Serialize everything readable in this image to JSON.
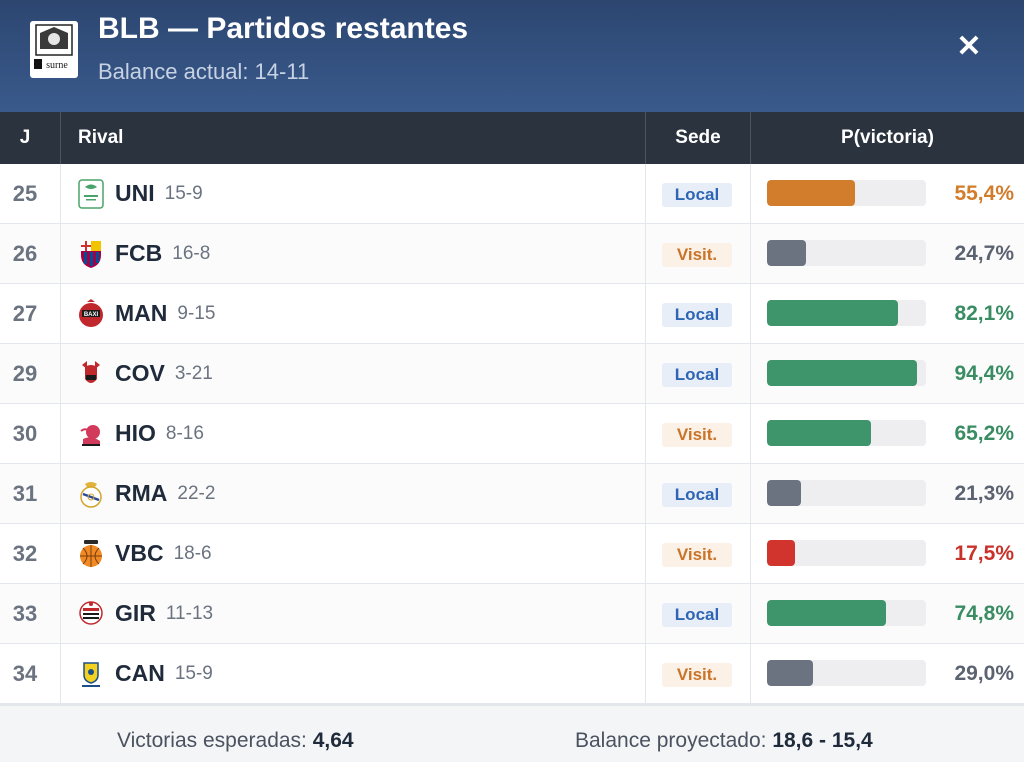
{
  "header": {
    "title": "BLB — Partidos restantes",
    "subtitle": "Balance actual: 14-11",
    "logo_text_top": "BILBAO BASKET",
    "logo_text_bottom": "surne",
    "close_icon": "close-icon",
    "colors": {
      "bg_top": "#2c4670",
      "bg_bottom": "#3a5a8c"
    }
  },
  "table": {
    "headers": {
      "j": "J",
      "rival": "Rival",
      "sede": "Sede",
      "prob": "P(victoria)"
    },
    "rows": [
      {
        "j": "25",
        "team": "UNI",
        "record": "15-9",
        "sede": "Local",
        "sede_type": "local",
        "prob": 0.554,
        "pct": "55,4%",
        "color": "#d17d2b",
        "pct_color": "#d17d2b"
      },
      {
        "j": "26",
        "team": "FCB",
        "record": "16-8",
        "sede": "Visit.",
        "sede_type": "visit",
        "prob": 0.247,
        "pct": "24,7%",
        "color": "#6b7280",
        "pct_color": "#5b6270"
      },
      {
        "j": "27",
        "team": "MAN",
        "record": "9-15",
        "sede": "Local",
        "sede_type": "local",
        "prob": 0.821,
        "pct": "82,1%",
        "color": "#3e946b",
        "pct_color": "#3a8c63"
      },
      {
        "j": "29",
        "team": "COV",
        "record": "3-21",
        "sede": "Local",
        "sede_type": "local",
        "prob": 0.944,
        "pct": "94,4%",
        "color": "#3e946b",
        "pct_color": "#3a8c63"
      },
      {
        "j": "30",
        "team": "HIO",
        "record": "8-16",
        "sede": "Visit.",
        "sede_type": "visit",
        "prob": 0.652,
        "pct": "65,2%",
        "color": "#3e946b",
        "pct_color": "#3a8c63"
      },
      {
        "j": "31",
        "team": "RMA",
        "record": "22-2",
        "sede": "Local",
        "sede_type": "local",
        "prob": 0.213,
        "pct": "21,3%",
        "color": "#6b7280",
        "pct_color": "#5b6270"
      },
      {
        "j": "32",
        "team": "VBC",
        "record": "18-6",
        "sede": "Visit.",
        "sede_type": "visit",
        "prob": 0.175,
        "pct": "17,5%",
        "color": "#d0342c",
        "pct_color": "#c8322a"
      },
      {
        "j": "33",
        "team": "GIR",
        "record": "11-13",
        "sede": "Local",
        "sede_type": "local",
        "prob": 0.748,
        "pct": "74,8%",
        "color": "#3e946b",
        "pct_color": "#3a8c63"
      },
      {
        "j": "34",
        "team": "CAN",
        "record": "15-9",
        "sede": "Visit.",
        "sede_type": "visit",
        "prob": 0.29,
        "pct": "29,0%",
        "color": "#6b7280",
        "pct_color": "#5b6270"
      }
    ]
  },
  "footer": {
    "expected_label": "Victorias esperadas:",
    "expected_value": "4,64",
    "projected_label": "Balance proyectado:",
    "projected_value": "18,6 - 15,4"
  }
}
